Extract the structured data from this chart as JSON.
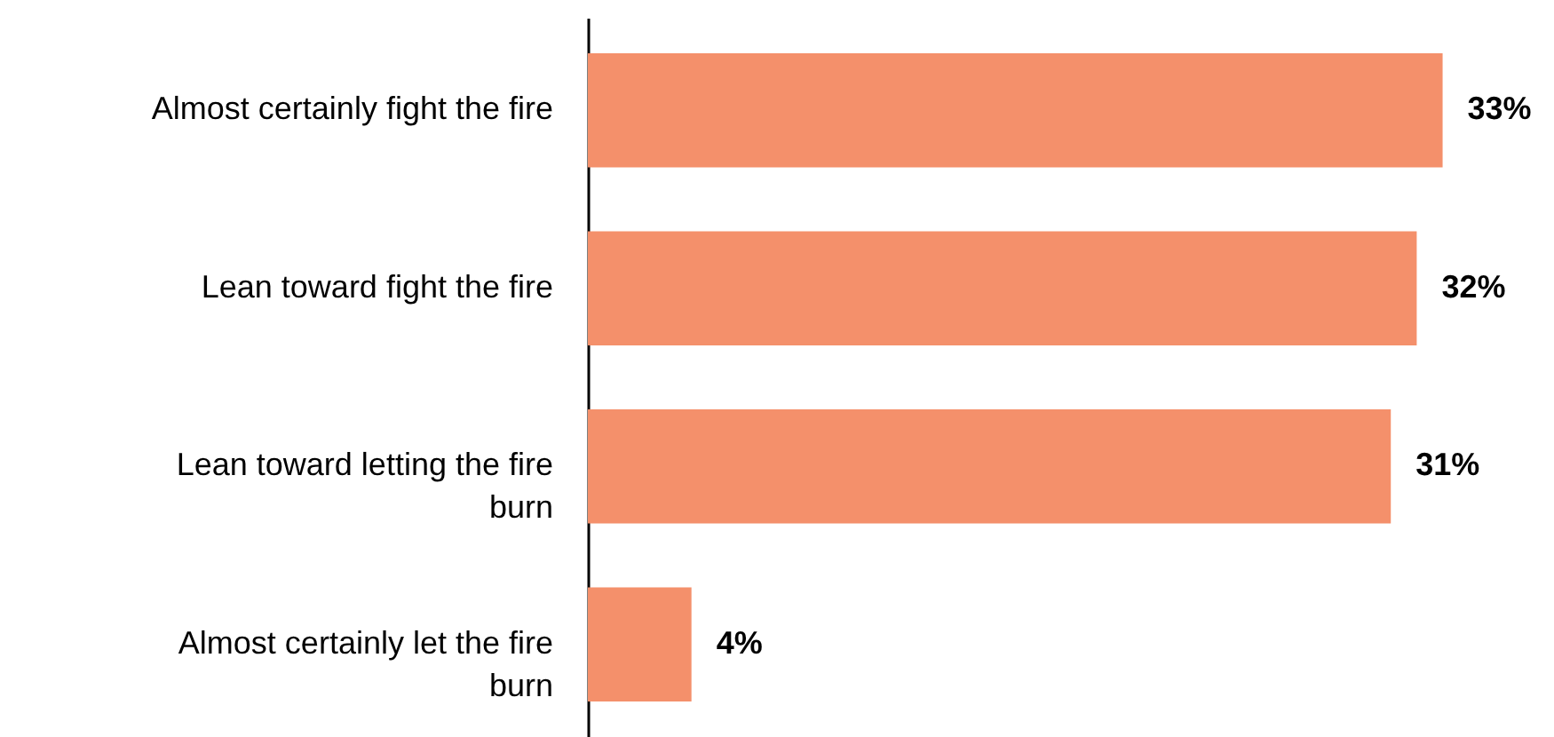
{
  "chart_data": {
    "type": "bar",
    "orientation": "horizontal",
    "categories": [
      "Almost certainly fight the fire",
      "Lean toward fight the fire",
      "Lean toward letting the fire burn",
      "Almost certainly let the fire burn"
    ],
    "values": [
      33,
      32,
      31,
      4
    ],
    "value_labels": [
      "33%",
      "32%",
      "31%",
      "4%"
    ],
    "color": "#f4906b",
    "xlim": [
      0,
      37.3
    ],
    "tick_labels": "y"
  }
}
